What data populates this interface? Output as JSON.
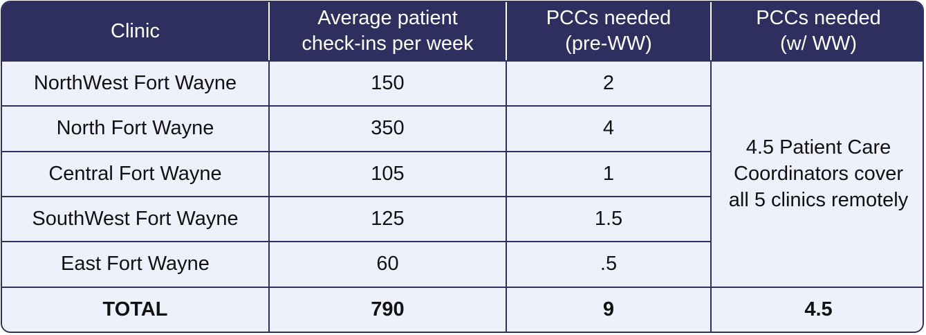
{
  "headers": [
    "Clinic",
    "Average patient check-ins per week",
    "PCCs needed (pre-WW)",
    "PCCs needed (w/ WW)"
  ],
  "rows": [
    {
      "clinic": "NorthWest Fort Wayne",
      "checkins": "150",
      "pre": "2"
    },
    {
      "clinic": "North Fort Wayne",
      "checkins": "350",
      "pre": "4"
    },
    {
      "clinic": "Central Fort Wayne",
      "checkins": "105",
      "pre": "1"
    },
    {
      "clinic": "SouthWest Fort Wayne",
      "checkins": "125",
      "pre": "1.5"
    },
    {
      "clinic": "East Fort Wayne",
      "checkins": "60",
      "pre": ".5"
    }
  ],
  "merged_note": "4.5 Patient Care Coordinators cover all 5 clinics remotely",
  "total": {
    "label": "TOTAL",
    "checkins": "790",
    "pre": "9",
    "ww": "4.5"
  }
}
